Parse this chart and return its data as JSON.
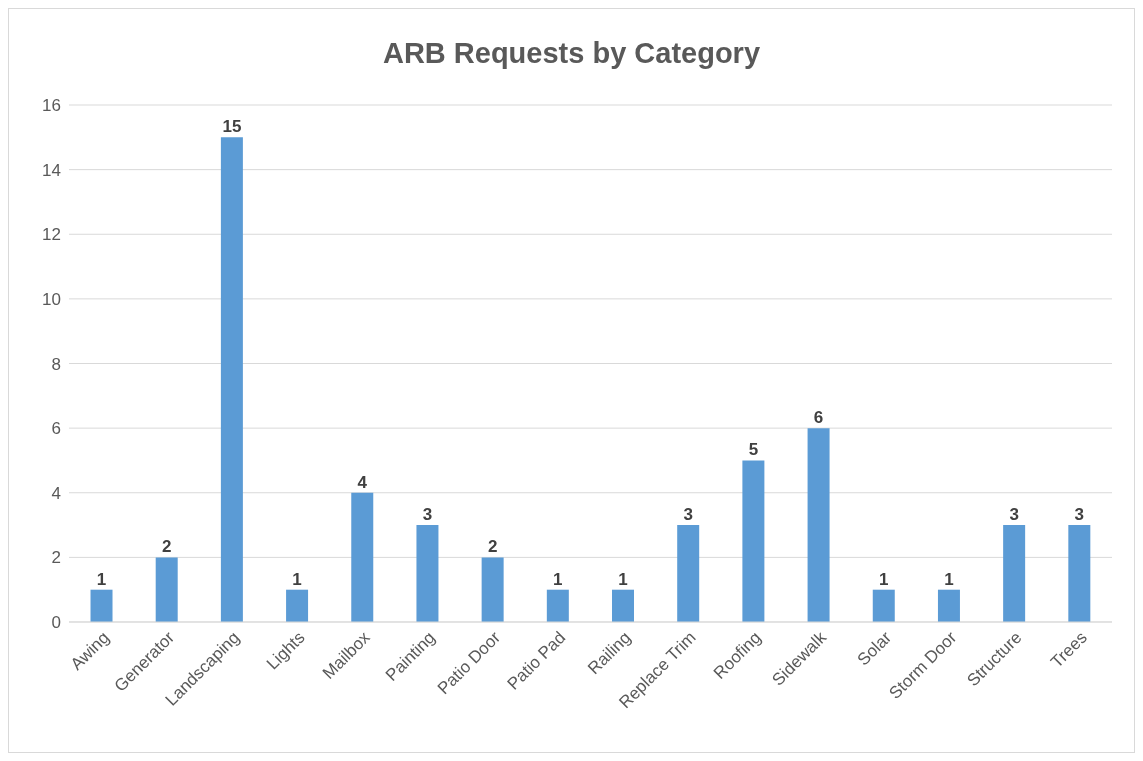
{
  "chart_data": {
    "type": "bar",
    "title": "ARB Requests by Category",
    "categories": [
      "Awing",
      "Generator",
      "Landscaping",
      "Lights",
      "Mailbox",
      "Painting",
      "Patio Door",
      "Patio Pad",
      "Railing",
      "Replace Trim",
      "Roofing",
      "Sidewalk",
      "Solar",
      "Storm Door",
      "Structure",
      "Trees"
    ],
    "values": [
      1,
      2,
      15,
      1,
      4,
      3,
      2,
      1,
      1,
      3,
      5,
      6,
      1,
      1,
      3,
      3
    ],
    "color": "#5b9bd5",
    "ylim": [
      0,
      16
    ],
    "yticks": [
      0,
      2,
      4,
      6,
      8,
      10,
      12,
      14,
      16
    ],
    "grid": "y",
    "data_labels": true
  }
}
